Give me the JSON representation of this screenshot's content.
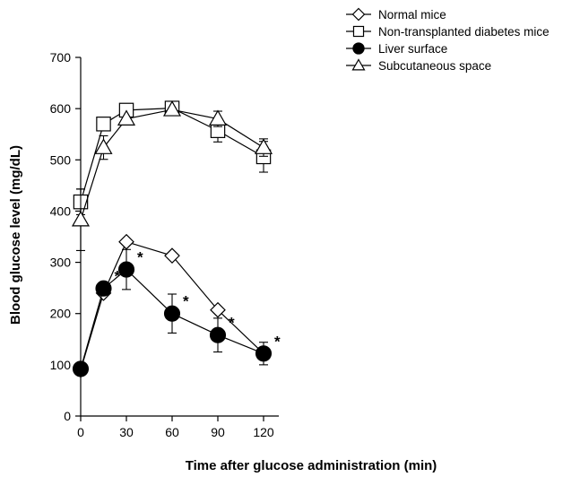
{
  "chart_data": {
    "type": "line",
    "xlabel": "Time after glucose administration (min)",
    "ylabel": "Blood glucose level (mg/dL)",
    "xlim": [
      0,
      130
    ],
    "ylim": [
      0,
      700
    ],
    "x_ticks": [
      0,
      30,
      60,
      90,
      120
    ],
    "y_ticks": [
      0,
      100,
      200,
      300,
      400,
      500,
      600,
      700
    ],
    "grid": false,
    "legend_position": "top-right",
    "series": [
      {
        "name": "Normal mice",
        "marker": "diamond-open",
        "x": [
          0,
          15,
          30,
          60,
          90,
          120
        ],
        "y": [
          90,
          240,
          340,
          313,
          207,
          122
        ],
        "err": [
          null,
          null,
          null,
          null,
          null,
          null
        ]
      },
      {
        "name": "Non-transplanted diabetes mice",
        "marker": "square-open",
        "x": [
          0,
          15,
          30,
          60,
          90,
          120
        ],
        "y": [
          418,
          570,
          597,
          601,
          557,
          506
        ],
        "err": [
          25,
          null,
          null,
          null,
          22,
          30
        ]
      },
      {
        "name": "Liver surface",
        "marker": "circle-filled",
        "x": [
          0,
          15,
          30,
          60,
          90,
          120
        ],
        "y": [
          92,
          249,
          286,
          200,
          158,
          122
        ],
        "err": [
          null,
          null,
          39,
          38,
          33,
          22
        ]
      },
      {
        "name": "Subcutaneous space",
        "marker": "triangle-open",
        "x": [
          0,
          15,
          30,
          60,
          90,
          120
        ],
        "y": [
          383,
          524,
          580,
          598,
          580,
          524
        ],
        "err": [
          60,
          23,
          null,
          null,
          15,
          17
        ]
      }
    ],
    "annotations": [
      {
        "x": 15,
        "y": 249,
        "text": "*"
      },
      {
        "x": 30,
        "y": 286,
        "text": "*"
      },
      {
        "x": 60,
        "y": 200,
        "text": "*"
      },
      {
        "x": 90,
        "y": 158,
        "text": "*"
      },
      {
        "x": 120,
        "y": 122,
        "text": "*"
      }
    ]
  }
}
